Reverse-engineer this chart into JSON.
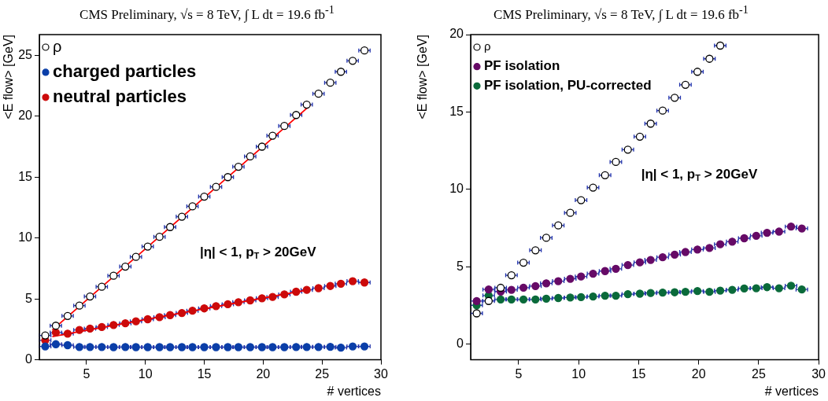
{
  "chart_data": [
    {
      "type": "scatter",
      "title": "CMS Preliminary, √s = 8 TeV, ∫ L dt = 19.6 fb$^{-1}$",
      "xlabel": "# vertices",
      "ylabel": "<E flow> [GeV]",
      "annotations": [
        "|η| < 1, p$_{T}$ > 20GeV"
      ],
      "x": [
        1.5,
        2.4,
        3.4,
        4.4,
        5.3,
        6.3,
        7.3,
        8.3,
        9.2,
        10.2,
        11.2,
        12.1,
        13.1,
        14.0,
        15.0,
        16.0,
        17.0,
        17.9,
        18.9,
        19.9,
        20.8,
        21.8,
        22.8,
        23.7,
        24.7,
        25.7,
        26.6,
        27.6,
        28.6
      ],
      "xlim": [
        1,
        30
      ],
      "xticks": [
        5,
        10,
        15,
        20,
        25,
        30
      ],
      "ylim": [
        0,
        26.7
      ],
      "yticks": [
        0,
        5,
        10,
        15,
        20,
        25
      ],
      "grid": false,
      "legend": "top left",
      "marker": "circle",
      "series": [
        {
          "name": "ρ",
          "color": "#000000",
          "marker": "circle-open",
          "values": [
            2.0,
            2.8,
            3.6,
            4.45,
            5.2,
            6.0,
            6.9,
            7.65,
            8.45,
            9.3,
            10.1,
            10.9,
            11.75,
            12.6,
            13.4,
            14.2,
            15.0,
            15.85,
            16.7,
            17.5,
            18.4,
            19.2,
            20.1,
            20.95,
            21.85,
            22.75,
            23.65,
            24.55,
            25.4
          ],
          "xerrors": [
            0.48,
            0.48,
            0.48,
            0.48,
            0.48,
            0.48,
            0.48,
            0.48,
            0.48,
            0.48,
            0.48,
            0.48,
            0.48,
            0.48,
            0.48,
            0.48,
            0.48,
            0.48,
            0.48,
            0.48,
            0.48,
            0.48,
            0.48,
            0.48,
            0.48,
            0.48,
            0.48,
            0.48,
            0.48
          ]
        },
        {
          "name": "charged particles",
          "color": "#0a3ea8",
          "values": [
            1.1,
            1.28,
            1.2,
            1.05,
            1.05,
            1.05,
            1.04,
            1.05,
            1.04,
            1.04,
            1.04,
            1.04,
            1.04,
            1.04,
            1.04,
            1.04,
            1.04,
            1.04,
            1.04,
            1.04,
            1.04,
            1.04,
            1.05,
            1.05,
            1.05,
            1.06,
            1.0,
            1.1,
            1.1
          ],
          "xerrors": [
            0.48,
            0.48,
            0.48,
            0.48,
            0.48,
            0.48,
            0.48,
            0.48,
            0.48,
            0.48,
            0.48,
            0.48,
            0.48,
            0.48,
            0.48,
            0.48,
            0.48,
            0.48,
            0.48,
            0.48,
            0.48,
            0.48,
            0.48,
            0.48,
            0.48,
            0.48,
            0.48,
            0.48,
            0.48
          ]
        },
        {
          "name": "neutral particles",
          "color": "#cc0a0a",
          "values": [
            1.6,
            2.24,
            2.15,
            2.45,
            2.56,
            2.69,
            2.86,
            3.0,
            3.16,
            3.33,
            3.5,
            3.67,
            3.84,
            4.03,
            4.22,
            4.41,
            4.56,
            4.73,
            4.88,
            5.05,
            5.16,
            5.37,
            5.59,
            5.74,
            5.88,
            6.06,
            6.25,
            6.46,
            6.35
          ],
          "xerrors": [
            0.48,
            0.48,
            0.48,
            0.48,
            0.48,
            0.48,
            0.48,
            0.48,
            0.48,
            0.48,
            0.48,
            0.48,
            0.48,
            0.48,
            0.48,
            0.48,
            0.48,
            0.48,
            0.48,
            0.48,
            0.48,
            0.48,
            0.48,
            0.48,
            0.48,
            0.48,
            0.48,
            0.48,
            0.48
          ]
        },
        {
          "type": "line",
          "color": "#ff0000",
          "marker": "none",
          "x": [
            2.1,
            24.0
          ],
          "values": [
            2.45,
            20.9
          ]
        },
        {
          "type": "line",
          "color": "#ff0000",
          "marker": "none",
          "x": [
            2.1,
            24.0
          ],
          "values": [
            1.9,
            5.78
          ]
        }
      ]
    },
    {
      "type": "scatter",
      "title": "CMS Preliminary, √s = 8 TeV, ∫ L dt = 19.6 fb$^{-1}$",
      "xlabel": "# vertices",
      "ylabel": "<E flow> [GeV]",
      "annotations": [
        "|η| < 1, p$_{T}$ > 20GeV"
      ],
      "x": [
        1.5,
        2.5,
        3.5,
        4.4,
        5.4,
        6.4,
        7.3,
        8.3,
        9.3,
        10.2,
        11.2,
        12.2,
        13.1,
        14.1,
        15.1,
        16.0,
        17.0,
        18.0,
        18.9,
        19.9,
        20.9,
        21.8,
        22.8,
        23.8,
        24.8,
        25.7,
        26.7,
        27.7,
        28.6
      ],
      "xlim": [
        1,
        30
      ],
      "xticks": [
        5,
        10,
        15,
        20,
        25,
        30
      ],
      "ylim": [
        -1,
        20
      ],
      "yticks": [
        0,
        5,
        10,
        15,
        20
      ],
      "grid": false,
      "legend": "top left",
      "marker": "circle",
      "series": [
        {
          "name": "ρ",
          "color": "#000000",
          "marker": "circle-open",
          "x": [
            1.5,
            2.5,
            3.5,
            4.4,
            5.4,
            6.4,
            7.3,
            8.3,
            9.3,
            10.2,
            11.2,
            12.2,
            13.1,
            14.1,
            15.1,
            16.0,
            17.0,
            18.0,
            18.9,
            19.9,
            20.9,
            21.8
          ],
          "values": [
            2.0,
            2.8,
            3.65,
            4.46,
            5.27,
            6.07,
            6.88,
            7.68,
            8.49,
            9.31,
            10.12,
            10.92,
            11.78,
            12.57,
            13.41,
            14.25,
            15.09,
            15.92,
            16.76,
            17.6,
            18.44,
            19.29
          ],
          "xerrors": [
            0.48,
            0.48,
            0.48,
            0.48,
            0.48,
            0.48,
            0.48,
            0.48,
            0.48,
            0.48,
            0.48,
            0.48,
            0.48,
            0.48,
            0.48,
            0.48,
            0.48,
            0.48,
            0.48,
            0.48,
            0.48,
            0.48
          ]
        },
        {
          "name": "PF isolation",
          "color": "#660a66",
          "values": [
            2.79,
            3.54,
            3.41,
            3.52,
            3.66,
            3.76,
            3.94,
            4.08,
            4.23,
            4.38,
            4.56,
            4.73,
            4.88,
            5.12,
            5.29,
            5.45,
            5.62,
            5.79,
            5.96,
            6.12,
            6.22,
            6.46,
            6.63,
            6.85,
            7.01,
            7.2,
            7.28,
            7.6,
            7.48
          ],
          "xerrors": [
            0.48,
            0.48,
            0.48,
            0.48,
            0.48,
            0.48,
            0.48,
            0.48,
            0.48,
            0.48,
            0.48,
            0.48,
            0.48,
            0.48,
            0.48,
            0.48,
            0.48,
            0.48,
            0.48,
            0.48,
            0.48,
            0.48,
            0.48,
            0.48,
            0.48,
            0.48,
            0.48,
            0.48,
            0.48
          ]
        },
        {
          "name": "PF isolation, PU-corrected",
          "color": "#0a6a3a",
          "values": [
            2.52,
            3.15,
            2.9,
            2.9,
            2.9,
            2.9,
            2.95,
            2.99,
            3.02,
            3.05,
            3.09,
            3.14,
            3.14,
            3.24,
            3.27,
            3.31,
            3.34,
            3.36,
            3.39,
            3.44,
            3.39,
            3.47,
            3.52,
            3.61,
            3.62,
            3.69,
            3.62,
            3.78,
            3.54
          ],
          "xerrors": [
            0.48,
            0.48,
            0.48,
            0.48,
            0.48,
            0.48,
            0.48,
            0.48,
            0.48,
            0.48,
            0.48,
            0.48,
            0.48,
            0.48,
            0.48,
            0.48,
            0.48,
            0.48,
            0.48,
            0.48,
            0.48,
            0.48,
            0.48,
            0.48,
            0.48,
            0.48,
            0.48,
            0.48,
            0.48
          ]
        }
      ]
    }
  ]
}
